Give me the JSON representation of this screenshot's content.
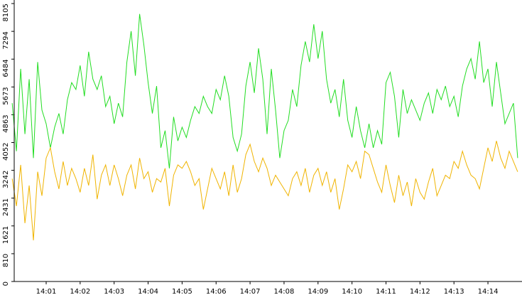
{
  "chart_data": {
    "type": "line",
    "categories": [
      null,
      null,
      null,
      null,
      null,
      null,
      null,
      null,
      "14:01",
      null,
      null,
      null,
      null,
      null,
      null,
      null,
      "14:02",
      null,
      null,
      null,
      null,
      null,
      null,
      null,
      "14:03",
      null,
      null,
      null,
      null,
      null,
      null,
      null,
      "14:04",
      null,
      null,
      null,
      null,
      null,
      null,
      null,
      "14:05",
      null,
      null,
      null,
      null,
      null,
      null,
      null,
      "14:06",
      null,
      null,
      null,
      null,
      null,
      null,
      null,
      "14:07",
      null,
      null,
      null,
      null,
      null,
      null,
      null,
      "14:08",
      null,
      null,
      null,
      null,
      null,
      null,
      null,
      "14:09",
      null,
      null,
      null,
      null,
      null,
      null,
      null,
      "14:10",
      null,
      null,
      null,
      null,
      null,
      null,
      null,
      "14:11",
      null,
      null,
      null,
      null,
      null,
      null,
      null,
      "14:12",
      null,
      null,
      null,
      null,
      null,
      null,
      null,
      "14:13",
      null,
      null,
      null,
      null,
      null,
      null,
      null,
      "14:14",
      null,
      null,
      null,
      null,
      null,
      null,
      null
    ],
    "series": [
      {
        "color": "#22dd22",
        "values": [
          5200,
          3800,
          6200,
          4300,
          5900,
          3600,
          6400,
          5000,
          4600,
          3900,
          4500,
          4900,
          4300,
          5300,
          5800,
          5600,
          6300,
          5400,
          6700,
          5900,
          5600,
          6000,
          5100,
          5400,
          4600,
          5200,
          4800,
          6400,
          7300,
          6000,
          7800,
          6900,
          5800,
          4900,
          5700,
          3900,
          4400,
          3300,
          4800,
          4100,
          4500,
          4200,
          4700,
          5100,
          4900,
          5400,
          5100,
          4900,
          5600,
          5300,
          6000,
          5400,
          4200,
          3800,
          4300,
          5700,
          6400,
          5500,
          6800,
          5900,
          4300,
          6200,
          5000,
          3600,
          4400,
          4700,
          5600,
          5100,
          6300,
          7000,
          6400,
          7500,
          6500,
          7300,
          5900,
          5200,
          5600,
          4800,
          5900,
          4700,
          4200,
          5100,
          4400,
          3900,
          4600,
          3900,
          4400,
          4000,
          5800,
          6100,
          5400,
          4200,
          5600,
          4900,
          5300,
          5000,
          4700,
          5200,
          5500,
          4900,
          5600,
          5300,
          5700,
          5100,
          5400,
          4800,
          5700,
          6200,
          6500,
          5900,
          7000,
          5800,
          6200,
          5100,
          6400,
          5500,
          4600,
          4900,
          5200,
          3600
        ]
      },
      {
        "color": "#f0b400",
        "values": [
          3000,
          2200,
          3400,
          1700,
          2800,
          1200,
          3200,
          2500,
          3600,
          3900,
          3200,
          2700,
          3500,
          2800,
          3300,
          3000,
          2600,
          3300,
          2800,
          3700,
          2400,
          3100,
          3400,
          2800,
          3400,
          3000,
          2500,
          3100,
          3400,
          2700,
          3600,
          3000,
          3200,
          2600,
          3000,
          2900,
          3300,
          2200,
          3100,
          3400,
          3300,
          3500,
          3200,
          2800,
          3000,
          2100,
          2700,
          3300,
          3000,
          2700,
          3200,
          2500,
          3400,
          2600,
          3000,
          3700,
          4000,
          3500,
          3200,
          3600,
          3300,
          2800,
          3100,
          2900,
          2700,
          2500,
          3000,
          3200,
          2800,
          3300,
          2600,
          3100,
          3300,
          2800,
          3200,
          2600,
          3000,
          2100,
          2700,
          3400,
          3200,
          3500,
          3000,
          3800,
          3700,
          3300,
          2900,
          2600,
          3400,
          2800,
          2300,
          3100,
          2500,
          2900,
          2200,
          3000,
          2600,
          2400,
          2900,
          3300,
          2500,
          2800,
          3100,
          3000,
          3500,
          3300,
          3800,
          3400,
          3100,
          3000,
          2700,
          3300,
          3900,
          3500,
          4100,
          3600,
          3300,
          3800,
          3500,
          3200
        ]
      }
    ],
    "ylim": [
      0,
      8105
    ],
    "yticks": [
      0,
      810,
      1621,
      2431,
      3242,
      4052,
      4863,
      5673,
      6484,
      7294,
      8105
    ],
    "grid": false
  }
}
